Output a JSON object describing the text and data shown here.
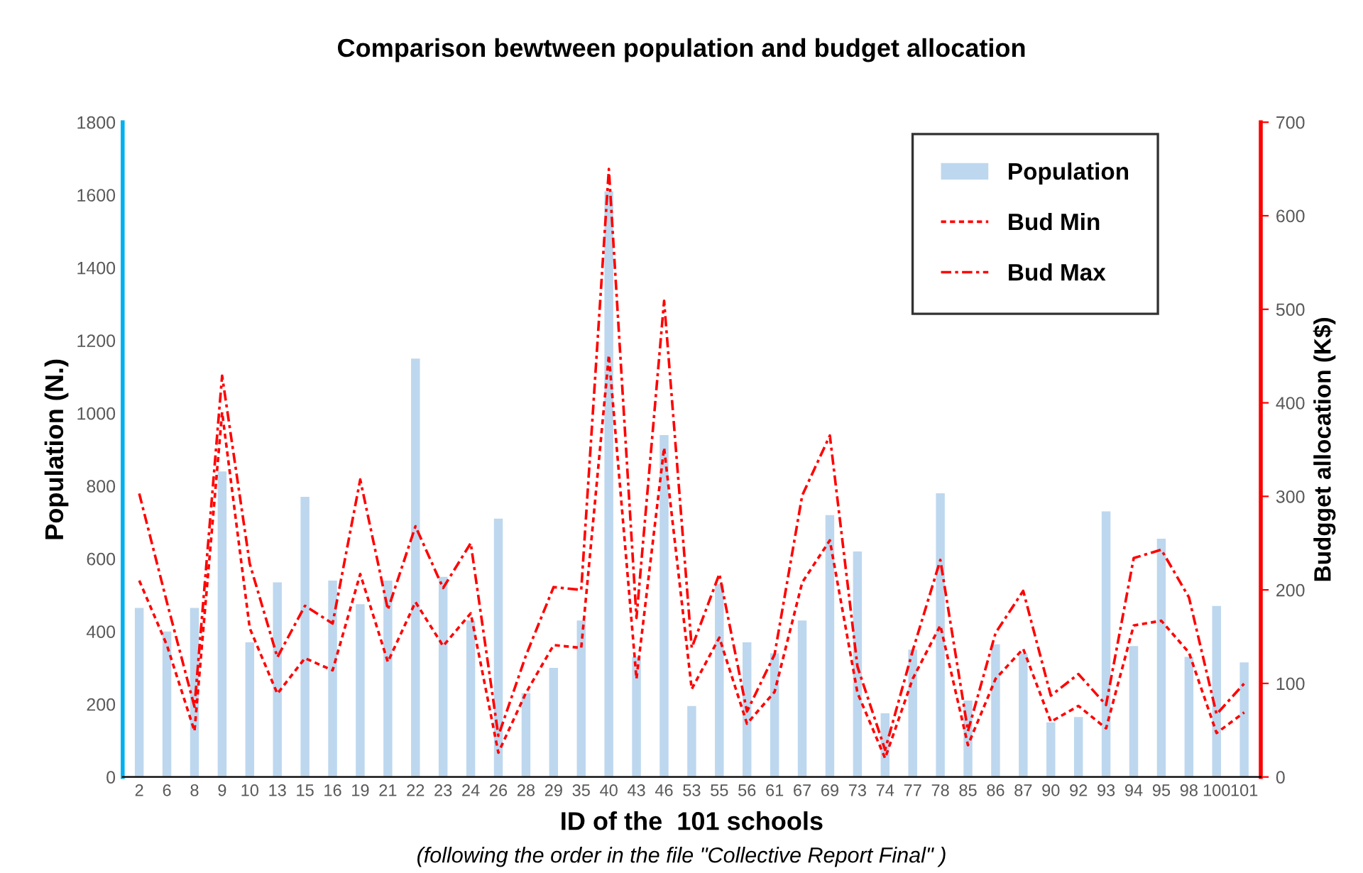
{
  "chart_data": {
    "type": "bar",
    "title": "Comparison bewtween population and budget allocation",
    "xlabel": "ID of the  101 schools",
    "ylabel": "Population (N.)",
    "y2label": "Budgget allocation (K$)",
    "annotations": [
      "(following the order in the file \"Collective Report Final\" )"
    ],
    "categories": [
      "2",
      "6",
      "8",
      "9",
      "10",
      "13",
      "15",
      "16",
      "19",
      "21",
      "22",
      "23",
      "24",
      "26",
      "28",
      "29",
      "35",
      "40",
      "43",
      "46",
      "53",
      "55",
      "56",
      "61",
      "67",
      "69",
      "73",
      "74",
      "77",
      "78",
      "85",
      "86",
      "87",
      "90",
      "92",
      "93",
      "94",
      "95",
      "98",
      "100",
      "101"
    ],
    "series": [
      {
        "name": "Population",
        "color": "#bdd7ee",
        "values": [
          465,
          400,
          465,
          840,
          370,
          535,
          770,
          540,
          475,
          540,
          1150,
          550,
          430,
          710,
          230,
          300,
          430,
          1610,
          330,
          940,
          195,
          530,
          370,
          340,
          430,
          720,
          620,
          175,
          350,
          780,
          210,
          365,
          340,
          150,
          165,
          730,
          360,
          655,
          330,
          470,
          315
        ]
      },
      {
        "name": "Bud Min",
        "type": "line",
        "axis": "y2",
        "color": "#ff0000",
        "line_style": "dotted",
        "values": [
          210,
          141,
          49,
          390,
          159,
          89,
          127,
          114,
          217,
          123,
          187,
          140,
          175,
          26,
          90,
          141,
          138,
          451,
          105,
          352,
          94,
          149,
          57,
          91,
          208,
          253,
          90,
          20,
          105,
          162,
          34,
          105,
          137,
          59,
          76,
          52,
          162,
          167,
          133,
          47,
          69
        ]
      },
      {
        "name": "Bud Max",
        "type": "line",
        "axis": "y2",
        "color": "#ff0000",
        "line_style": "dashdot",
        "values": [
          303,
          187,
          75,
          429,
          228,
          128,
          183,
          164,
          318,
          179,
          268,
          202,
          250,
          44,
          130,
          203,
          200,
          650,
          170,
          509,
          138,
          217,
          70,
          131,
          301,
          365,
          118,
          29,
          135,
          232,
          49,
          154,
          199,
          87,
          110,
          77,
          234,
          243,
          192,
          67,
          100
        ]
      }
    ],
    "ylim": [
      0,
      1800
    ],
    "yticks": [
      0,
      200,
      400,
      600,
      800,
      1000,
      1200,
      1400,
      1600,
      1800
    ],
    "y2lim": [
      0,
      700
    ],
    "y2ticks": [
      0,
      100,
      200,
      300,
      400,
      500,
      600,
      700
    ],
    "grid": false,
    "legend": "top right"
  }
}
